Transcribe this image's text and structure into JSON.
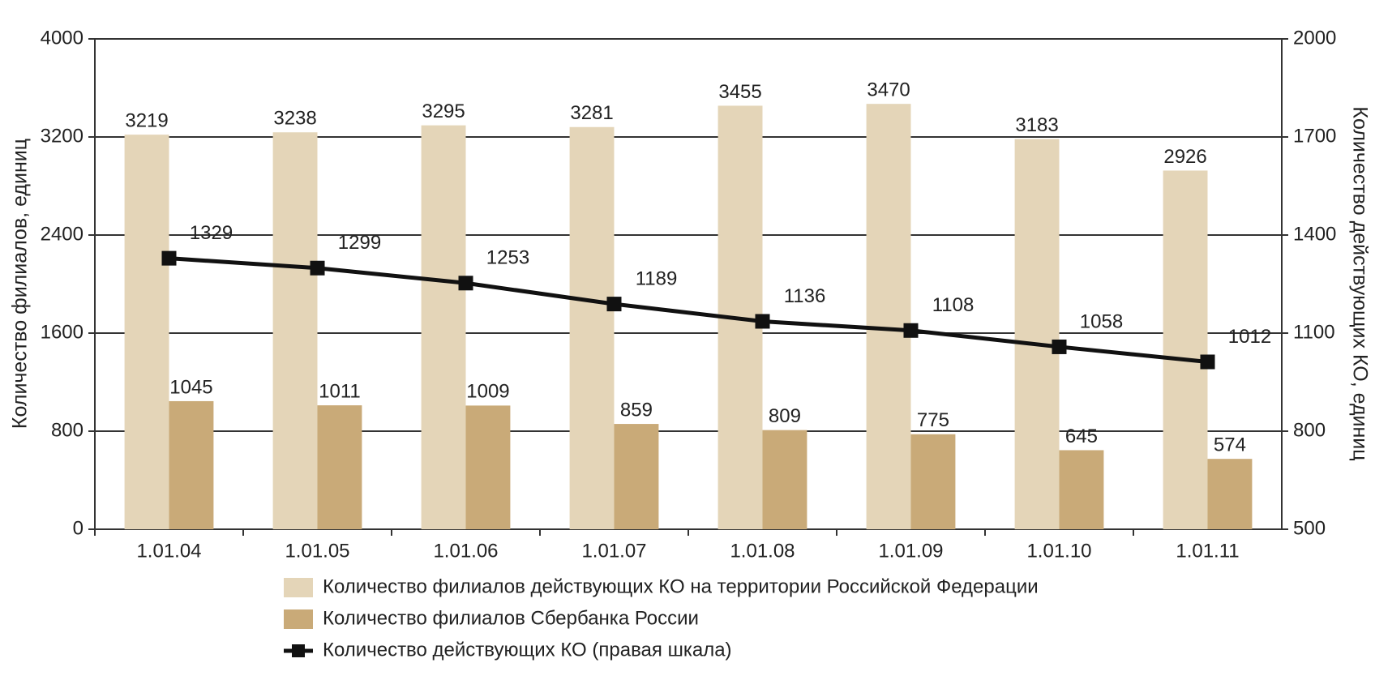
{
  "chart_data": {
    "type": "bar",
    "categories": [
      "1.01.04",
      "1.01.05",
      "1.01.06",
      "1.01.07",
      "1.01.08",
      "1.01.09",
      "1.01.10",
      "1.01.11"
    ],
    "y_label": "Количество филиалов, единиц",
    "y2_label": "Количество действующих КО, единиц",
    "ylim": [
      0,
      4000
    ],
    "yticks": [
      0,
      800,
      1600,
      2400,
      3200,
      4000
    ],
    "y2lim": [
      500,
      2000
    ],
    "y2ticks": [
      500,
      800,
      1100,
      1400,
      1700,
      2000
    ],
    "grid": true,
    "legend": "bottom",
    "series": [
      {
        "name": "Количество филиалов действующих КО на территории Российской  Федерации",
        "color": "#e4d5b8",
        "values": [
          3219,
          3238,
          3295,
          3281,
          3455,
          3470,
          3183,
          2926
        ]
      },
      {
        "name": "Количество филиалов Сбербанка России",
        "color": "#c9aa78",
        "values": [
          1045,
          1011,
          1009,
          859,
          809,
          775,
          645,
          574
        ]
      },
      {
        "name": "Количество действующих КО (правая шкала)",
        "color": "#111111",
        "type": "line",
        "axis": "y2",
        "values": [
          1329,
          1299,
          1253,
          1189,
          1136,
          1108,
          1058,
          1012
        ]
      }
    ]
  }
}
